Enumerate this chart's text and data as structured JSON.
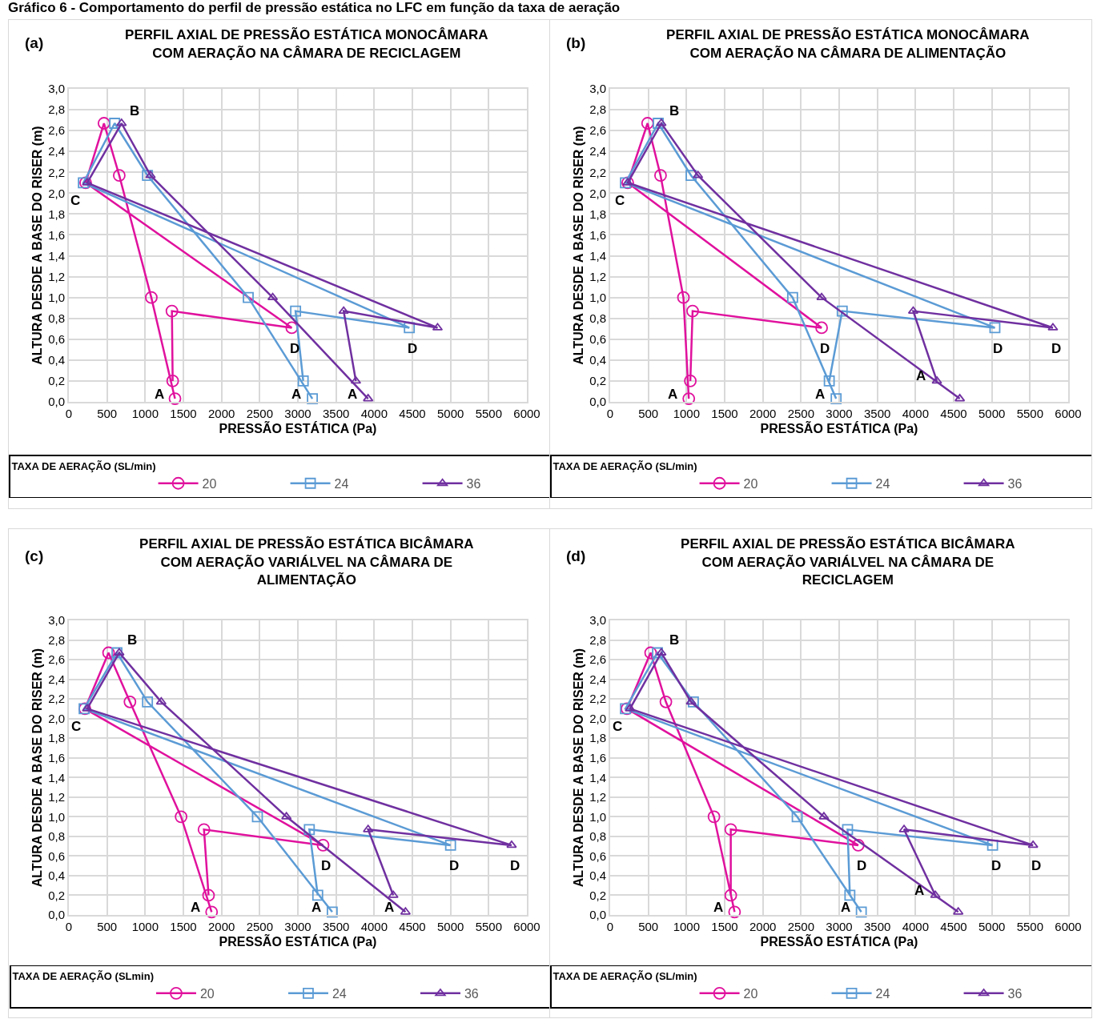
{
  "chart_data": [
    {
      "type": "line",
      "title": "PERFIL AXIAL DE PRESSÃO ESTÁTICA MONOCÂMARA COM AERAÇÃO NA CÂMARA DE RECICLAGEM",
      "xlabel": "PRESSÃO ESTÁTICA (Pa)",
      "ylabel": "ALTURA DESDE A BASE DO RISER (m)",
      "legend_title": "TAXA DE AERAÇÃO (SL/min)",
      "legend": "bottom",
      "grid": true,
      "line_style": "solid",
      "xlim": [
        0,
        6000
      ],
      "xticks": [
        0,
        500,
        1000,
        1500,
        2000,
        2500,
        3000,
        3500,
        4000,
        4500,
        5000,
        5500,
        6000
      ],
      "ylim": [
        0,
        3
      ],
      "yticks": [
        {
          "value": 0,
          "label": "0,0"
        },
        {
          "value": 0.2,
          "label": "0,2"
        },
        {
          "value": 0.4,
          "label": "0,4"
        },
        {
          "value": 0.6,
          "label": "0,6"
        },
        {
          "value": 0.8,
          "label": "0,8"
        },
        {
          "value": 1,
          "label": "1,0"
        },
        {
          "value": 1.2,
          "label": "1,2"
        },
        {
          "value": 1.4,
          "label": "1,4"
        },
        {
          "value": 1.6,
          "label": "1,6"
        },
        {
          "value": 1.8,
          "label": "1,8"
        },
        {
          "value": 2,
          "label": "2,0"
        },
        {
          "value": 2.2,
          "label": "2,2"
        },
        {
          "value": 2.4,
          "label": "2,4"
        },
        {
          "value": 2.6,
          "label": "2,6"
        },
        {
          "value": 2.8,
          "label": "2,8"
        },
        {
          "value": 3,
          "label": "3,0"
        }
      ],
      "series": [
        {
          "name": "20",
          "color": "#e0119d",
          "marker": "circle",
          "x": [
            1390,
            1080,
            660,
            460,
            220,
            2920,
            1350,
            1360
          ],
          "values": [
            0.03,
            1.0,
            2.17,
            2.67,
            2.1,
            0.71,
            0.87,
            0.2
          ]
        },
        {
          "name": "24",
          "color": "#5b9bd5",
          "marker": "square",
          "x": [
            3190,
            2350,
            1030,
            600,
            190,
            4460,
            2970,
            3070
          ],
          "values": [
            0.03,
            1.0,
            2.17,
            2.67,
            2.1,
            0.71,
            0.87,
            0.2
          ]
        },
        {
          "name": "36",
          "color": "#7030a0",
          "marker": "triangle",
          "x": [
            3920,
            2670,
            1070,
            690,
            240,
            4830,
            3600,
            3760
          ],
          "values": [
            0.03,
            1.0,
            2.17,
            2.67,
            2.1,
            0.71,
            0.87,
            0.2
          ]
        }
      ],
      "annotations": [
        "Gráfico 6 - Comportamento do perfil de pressão estática no LFC em função da taxa de aeração",
        "(a)",
        {
          "text": "B",
          "x": 690,
          "y": 2.67
        },
        {
          "text": "C",
          "x": 190,
          "y": 2.1
        },
        {
          "text": "A",
          "x": 1390,
          "y": 0.03
        },
        {
          "text": "A",
          "x": 3190,
          "y": 0.03
        },
        {
          "text": "A",
          "x": 3920,
          "y": 0.03
        },
        {
          "text": "D",
          "x": 2920,
          "y": 0.71
        },
        {
          "text": "D",
          "x": 4460,
          "y": 0.71
        }
      ]
    },
    {
      "type": "line",
      "title": "PERFIL AXIAL DE PRESSÃO ESTÁTICA MONOCÂMARA COM AERAÇÃO NA CÂMARA DE ALIMENTAÇÃO",
      "xlabel": "PRESSÃO ESTÁTICA (Pa)",
      "ylabel": "ALTURA DESDE A BASE DO RISER (m)",
      "legend_title": "TAXA DE AERAÇÃO (SL/min)",
      "legend": "bottom",
      "grid": true,
      "line_style": "solid",
      "xlim": [
        0,
        6000
      ],
      "xticks": [
        0,
        500,
        1000,
        1500,
        2000,
        2500,
        3000,
        3500,
        4000,
        4500,
        5000,
        5500,
        6000
      ],
      "ylim": [
        0,
        3
      ],
      "yticks": [
        {
          "value": 0,
          "label": "0,0"
        },
        {
          "value": 0.2,
          "label": "0,2"
        },
        {
          "value": 0.4,
          "label": "0,4"
        },
        {
          "value": 0.6,
          "label": "0,6"
        },
        {
          "value": 0.8,
          "label": "0,8"
        },
        {
          "value": 1,
          "label": "1,0"
        },
        {
          "value": 1.2,
          "label": "1,2"
        },
        {
          "value": 1.4,
          "label": "1,4"
        },
        {
          "value": 1.6,
          "label": "1,6"
        },
        {
          "value": 1.8,
          "label": "1,8"
        },
        {
          "value": 2,
          "label": "2,0"
        },
        {
          "value": 2.2,
          "label": "2,2"
        },
        {
          "value": 2.4,
          "label": "2,4"
        },
        {
          "value": 2.6,
          "label": "2,6"
        },
        {
          "value": 2.8,
          "label": "2,8"
        },
        {
          "value": 3,
          "label": "3,0"
        }
      ],
      "series": [
        {
          "name": "20",
          "color": "#e0119d",
          "marker": "circle",
          "x": [
            1030,
            960,
            660,
            490,
            230,
            2770,
            1080,
            1050
          ],
          "values": [
            0.03,
            1.0,
            2.17,
            2.67,
            2.1,
            0.71,
            0.87,
            0.2
          ]
        },
        {
          "name": "24",
          "color": "#5b9bd5",
          "marker": "square",
          "x": [
            2960,
            2390,
            1060,
            630,
            200,
            5040,
            3040,
            2870
          ],
          "values": [
            0.03,
            1.0,
            2.17,
            2.67,
            2.1,
            0.71,
            0.87,
            0.2
          ]
        },
        {
          "name": "36",
          "color": "#7030a0",
          "marker": "triangle",
          "x": [
            4580,
            2770,
            1150,
            670,
            230,
            5800,
            3970,
            4280
          ],
          "values": [
            0.03,
            1.0,
            2.17,
            2.67,
            2.1,
            0.71,
            0.87,
            0.2
          ]
        }
      ],
      "annotations": [
        "(b)",
        {
          "text": "B",
          "x": 670,
          "y": 2.67
        },
        {
          "text": "C",
          "x": 230,
          "y": 2.1
        },
        {
          "text": "A",
          "x": 1030,
          "y": 0.03
        },
        {
          "text": "A",
          "x": 2960,
          "y": 0.03
        },
        {
          "text": "A",
          "x": 4280,
          "y": 0.2
        },
        {
          "text": "D",
          "x": 2770,
          "y": 0.71
        },
        {
          "text": "D",
          "x": 5040,
          "y": 0.71
        },
        {
          "text": "D",
          "x": 5800,
          "y": 0.71
        }
      ]
    },
    {
      "type": "line",
      "title": "PERFIL AXIAL DE PRESSÃO ESTÁTICA BICÂMARA COM AERAÇÃO VARIÁLVEL NA CÂMARA DE ALIMENTAÇÃO",
      "xlabel": "PRESSÃO ESTÁTICA (Pa)",
      "ylabel": "ALTURA DESDE A BASE DO RISER (m)",
      "legend_title": "TAXA DE AERAÇÃO (SLmin)",
      "legend": "bottom",
      "grid": true,
      "line_style": "solid",
      "xlim": [
        0,
        6000
      ],
      "xticks": [
        0,
        500,
        1000,
        1500,
        2000,
        2500,
        3000,
        3500,
        4000,
        4500,
        5000,
        5500,
        6000
      ],
      "ylim": [
        0,
        3
      ],
      "yticks": [
        {
          "value": 0,
          "label": "0,0"
        },
        {
          "value": 0.2,
          "label": "0,2"
        },
        {
          "value": 0.4,
          "label": "0,4"
        },
        {
          "value": 0.6,
          "label": "0,6"
        },
        {
          "value": 0.8,
          "label": "0,8"
        },
        {
          "value": 1,
          "label": "1,0"
        },
        {
          "value": 1.2,
          "label": "1,2"
        },
        {
          "value": 1.4,
          "label": "1,4"
        },
        {
          "value": 1.6,
          "label": "1,6"
        },
        {
          "value": 1.8,
          "label": "1,8"
        },
        {
          "value": 2,
          "label": "2,0"
        },
        {
          "value": 2.2,
          "label": "2,2"
        },
        {
          "value": 2.4,
          "label": "2,4"
        },
        {
          "value": 2.6,
          "label": "2,6"
        },
        {
          "value": 2.8,
          "label": "2,8"
        },
        {
          "value": 3,
          "label": "3,0"
        }
      ],
      "series": [
        {
          "name": "20",
          "color": "#e0119d",
          "marker": "circle",
          "x": [
            1870,
            1470,
            800,
            520,
            210,
            3330,
            1770,
            1830
          ],
          "values": [
            0.03,
            1.0,
            2.17,
            2.67,
            2.1,
            0.71,
            0.87,
            0.2
          ]
        },
        {
          "name": "24",
          "color": "#5b9bd5",
          "marker": "square",
          "x": [
            3450,
            2470,
            1030,
            630,
            200,
            5000,
            3150,
            3260
          ],
          "values": [
            0.03,
            1.0,
            2.17,
            2.67,
            2.1,
            0.71,
            0.87,
            0.2
          ]
        },
        {
          "name": "36",
          "color": "#7030a0",
          "marker": "triangle",
          "x": [
            4410,
            2850,
            1210,
            660,
            240,
            5800,
            3920,
            4250
          ],
          "values": [
            0.03,
            1.0,
            2.17,
            2.67,
            2.1,
            0.71,
            0.87,
            0.2
          ]
        }
      ],
      "annotations": [
        "(c)",
        {
          "text": "B",
          "x": 660,
          "y": 2.67
        },
        {
          "text": "C",
          "x": 200,
          "y": 2.1
        },
        {
          "text": "A",
          "x": 1870,
          "y": 0.03
        },
        {
          "text": "A",
          "x": 3450,
          "y": 0.03
        },
        {
          "text": "A",
          "x": 4410,
          "y": 0.03
        },
        {
          "text": "D",
          "x": 3330,
          "y": 0.71
        },
        {
          "text": "D",
          "x": 5000,
          "y": 0.71
        },
        {
          "text": "D",
          "x": 5800,
          "y": 0.71
        }
      ]
    },
    {
      "type": "line",
      "title": "PERFIL AXIAL DE PRESSÃO ESTÁTICA BICÂMARA COM AERAÇÃO VARIÁLVEL NA CÂMARA DE RECICLAGEM",
      "xlabel": "PRESSÃO ESTÁTICA (Pa)",
      "ylabel": "ALTURA DESDE A BASE DO RISER (m)",
      "legend_title": "TAXA DE AERAÇÃO (SL/min)",
      "legend": "bottom",
      "grid": true,
      "line_style": "solid",
      "xlim": [
        0,
        6000
      ],
      "xticks": [
        0,
        500,
        1000,
        1500,
        2000,
        2500,
        3000,
        3500,
        4000,
        4500,
        5000,
        5500,
        6000
      ],
      "ylim": [
        0,
        3
      ],
      "yticks": [
        {
          "value": 0,
          "label": "0,0"
        },
        {
          "value": 0.2,
          "label": "0,2"
        },
        {
          "value": 0.4,
          "label": "0,4"
        },
        {
          "value": 0.6,
          "label": "0,6"
        },
        {
          "value": 0.8,
          "label": "0,8"
        },
        {
          "value": 1,
          "label": "1,0"
        },
        {
          "value": 1.2,
          "label": "1,2"
        },
        {
          "value": 1.4,
          "label": "1,4"
        },
        {
          "value": 1.6,
          "label": "1,6"
        },
        {
          "value": 1.8,
          "label": "1,8"
        },
        {
          "value": 2,
          "label": "2,0"
        },
        {
          "value": 2.2,
          "label": "2,2"
        },
        {
          "value": 2.4,
          "label": "2,4"
        },
        {
          "value": 2.6,
          "label": "2,6"
        },
        {
          "value": 2.8,
          "label": "2,8"
        },
        {
          "value": 3,
          "label": "3,0"
        }
      ],
      "series": [
        {
          "name": "20",
          "color": "#e0119d",
          "marker": "circle",
          "x": [
            1630,
            1360,
            730,
            530,
            220,
            3250,
            1580,
            1580
          ],
          "values": [
            0.03,
            1.0,
            2.17,
            2.67,
            2.1,
            0.71,
            0.87,
            0.2
          ]
        },
        {
          "name": "24",
          "color": "#5b9bd5",
          "marker": "square",
          "x": [
            3290,
            2450,
            1090,
            620,
            200,
            5010,
            3110,
            3140
          ],
          "values": [
            0.03,
            1.0,
            2.17,
            2.67,
            2.1,
            0.71,
            0.87,
            0.2
          ]
        },
        {
          "name": "36",
          "color": "#7030a0",
          "marker": "triangle",
          "x": [
            4560,
            2800,
            1060,
            670,
            260,
            5540,
            3850,
            4260
          ],
          "values": [
            0.03,
            1.0,
            2.17,
            2.67,
            2.1,
            0.71,
            0.87,
            0.2
          ]
        }
      ],
      "annotations": [
        "(d)",
        {
          "text": "B",
          "x": 670,
          "y": 2.67
        },
        {
          "text": "C",
          "x": 200,
          "y": 2.1
        },
        {
          "text": "A",
          "x": 1630,
          "y": 0.03
        },
        {
          "text": "A",
          "x": 3290,
          "y": 0.03
        },
        {
          "text": "A",
          "x": 4260,
          "y": 0.2
        },
        {
          "text": "D",
          "x": 3250,
          "y": 0.71
        },
        {
          "text": "D",
          "x": 5010,
          "y": 0.71
        },
        {
          "text": "D",
          "x": 5540,
          "y": 0.71
        }
      ]
    }
  ]
}
